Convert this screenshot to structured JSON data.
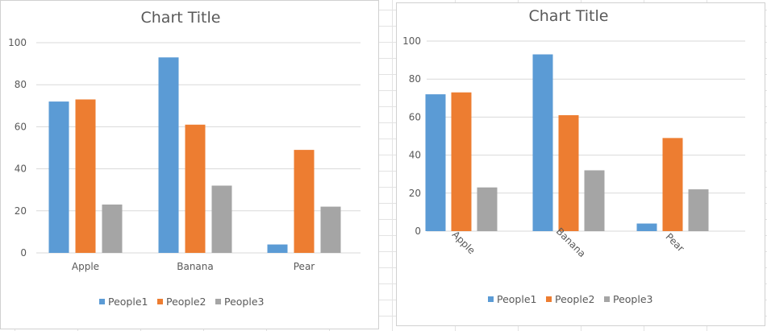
{
  "chart_data": [
    {
      "type": "bar",
      "title": "Chart Title",
      "categories": [
        "Apple",
        "Banana",
        "Pear"
      ],
      "category_label_rotation": "horizontal",
      "series": [
        {
          "name": "People1",
          "values": [
            72,
            93,
            4
          ],
          "color": "#5B9BD5"
        },
        {
          "name": "People2",
          "values": [
            73,
            61,
            49
          ],
          "color": "#ED7D31"
        },
        {
          "name": "People3",
          "values": [
            23,
            32,
            22
          ],
          "color": "#A5A5A5"
        }
      ],
      "yticks": [
        "0",
        "20",
        "40",
        "60",
        "80",
        "100"
      ],
      "ylim": [
        0,
        100
      ],
      "grid": true,
      "legend_position": "bottom"
    },
    {
      "type": "bar",
      "title": "Chart Title",
      "categories": [
        "Apple",
        "Banana",
        "Pear"
      ],
      "category_label_rotation": "diagonal",
      "series": [
        {
          "name": "People1",
          "values": [
            72,
            93,
            4
          ],
          "color": "#5B9BD5"
        },
        {
          "name": "People2",
          "values": [
            73,
            61,
            49
          ],
          "color": "#ED7D31"
        },
        {
          "name": "People3",
          "values": [
            23,
            32,
            22
          ],
          "color": "#A5A5A5"
        }
      ],
      "yticks": [
        "0",
        "20",
        "40",
        "60",
        "80",
        "100"
      ],
      "ylim": [
        0,
        100
      ],
      "grid": true,
      "legend_position": "bottom"
    }
  ]
}
